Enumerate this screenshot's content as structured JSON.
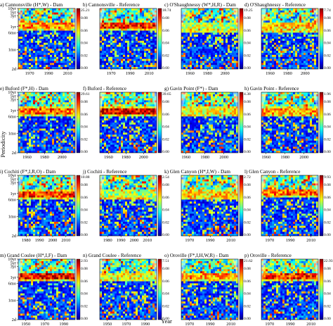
{
  "figure": {
    "ylabel": "Periodicity",
    "xlabel": "Year"
  },
  "chart_data": [
    {
      "type": "heatmap",
      "label": "a) Cannonsville (H*,W) - Dam",
      "x_ticks": [
        "1970",
        "1990",
        "2010"
      ],
      "y_ticks": [
        "10yr",
        "5yr",
        "3yr",
        "1yr",
        "6mo",
        "1mo",
        "2d"
      ],
      "colorbar_max": "25.21",
      "colorbar_ticks": [
        "0.08",
        "0.06",
        "0.04",
        "0.02",
        "0.00"
      ],
      "x_range": [
        1958,
        2018
      ]
    },
    {
      "type": "heatmap",
      "label": "b) Cannonsville - Reference",
      "x_ticks": [
        "1970",
        "1990",
        "2010"
      ],
      "y_ticks": [],
      "colorbar_max": "18.74",
      "colorbar_ticks": [
        "0.08",
        "0.06",
        "0.04",
        "0.02",
        "0.00"
      ],
      "x_range": [
        1958,
        2018
      ]
    },
    {
      "type": "heatmap",
      "label": "c) O'Shaughnessy (W*,H,R) - Dam",
      "x_ticks": [
        "1960",
        "1980",
        "2000"
      ],
      "y_ticks": [],
      "colorbar_max": "19.25",
      "colorbar_ticks": [
        "0.08",
        "0.06",
        "0.04",
        "0.02",
        "0.00"
      ],
      "x_range": [
        1950,
        2015
      ]
    },
    {
      "type": "heatmap",
      "label": "d) O'Shaughnessy - Reference",
      "x_ticks": [
        "1960",
        "1980",
        "2000"
      ],
      "y_ticks": [],
      "colorbar_max": "7.74",
      "colorbar_ticks": [
        "0.08",
        "0.06",
        "0.04",
        "0.02",
        "0.00"
      ],
      "x_range": [
        1950,
        2015
      ]
    },
    {
      "type": "heatmap",
      "label": "e) Buford (F*,H) - Dam",
      "x_ticks": [
        "1960",
        "1980",
        "2000"
      ],
      "y_ticks": [
        "10yr",
        "5yr",
        "3yr",
        "1yr",
        "6mo",
        "1mo",
        "2d"
      ],
      "colorbar_max": "29.61",
      "colorbar_ticks": [
        "0.08",
        "0.06",
        "0.04",
        "0.02",
        "0.00"
      ],
      "x_range": [
        1950,
        2015
      ]
    },
    {
      "type": "heatmap",
      "label": "f) Buford - Reference",
      "x_ticks": [
        "1960",
        "1980",
        "2000"
      ],
      "y_ticks": [],
      "colorbar_max": "39.65",
      "colorbar_ticks": [
        "0.08",
        "0.06",
        "0.04",
        "0.02",
        "0.00"
      ],
      "x_range": [
        1950,
        2015
      ]
    },
    {
      "type": "heatmap",
      "label": "g) Gavin Point (F*) - Dam",
      "x_ticks": [
        "1960",
        "1980",
        "2000"
      ],
      "y_ticks": [],
      "colorbar_max": "4.38",
      "colorbar_ticks": [
        "0.08",
        "0.06",
        "0.04",
        "0.02",
        "0.00"
      ],
      "x_range": [
        1955,
        2015
      ]
    },
    {
      "type": "heatmap",
      "label": "h) Gavin Point - Reference",
      "x_ticks": [
        "1960",
        "1980",
        "2000"
      ],
      "y_ticks": [],
      "colorbar_max": "1.96",
      "colorbar_ticks": [
        "0.08",
        "0.06",
        "0.04",
        "0.02",
        "0.00"
      ],
      "x_range": [
        1955,
        2015
      ]
    },
    {
      "type": "heatmap",
      "label": "i) Cochiti (F*,I,R,O) - Dam",
      "x_ticks": [
        "1980",
        "1990",
        "2000",
        "2010"
      ],
      "y_ticks": [
        "10yr",
        "5yr",
        "3yr",
        "1yr",
        "6mo",
        "1mo",
        "2d"
      ],
      "colorbar_max": "10.88",
      "colorbar_ticks": [
        "0.08",
        "0.06",
        "0.04",
        "0.02",
        "0.00"
      ],
      "x_range": [
        1974,
        2017
      ]
    },
    {
      "type": "heatmap",
      "label": "j) Cochiti - Reference",
      "x_ticks": [
        "1980",
        "1990",
        "2000",
        "2010"
      ],
      "y_ticks": [],
      "colorbar_max": "2.54",
      "colorbar_ticks": [
        "0.08",
        "0.06",
        "0.04",
        "0.02",
        "0.00"
      ],
      "x_range": [
        1974,
        2017
      ]
    },
    {
      "type": "heatmap",
      "label": "k) Glen Canyon (H*,I,W) - Dam",
      "x_ticks": [
        "1970",
        "1990",
        "2010"
      ],
      "y_ticks": [],
      "colorbar_max": "2.72",
      "colorbar_ticks": [
        "0.08",
        "0.06",
        "0.04",
        "0.02",
        "0.00"
      ],
      "x_range": [
        1962,
        2017
      ]
    },
    {
      "type": "heatmap",
      "label": "l) Glen Canyon - Reference",
      "x_ticks": [
        "1970",
        "1990",
        "2010"
      ],
      "y_ticks": [],
      "colorbar_max": "9.93",
      "colorbar_ticks": [
        "0.08",
        "0.06",
        "0.04",
        "0.02",
        "0.00"
      ],
      "x_range": [
        1962,
        2017
      ]
    },
    {
      "type": "heatmap",
      "label": "m) Grand Coulee (H*,I,F) - Dam",
      "x_ticks": [
        "1950",
        "1970",
        "1990"
      ],
      "y_ticks": [
        "10yr",
        "5yr",
        "3yr",
        "1yr",
        "6mo",
        "1mo",
        "2d"
      ],
      "colorbar_max": "2.93",
      "colorbar_ticks": [
        "0.08",
        "0.06",
        "0.04",
        "0.02",
        "0.00"
      ],
      "x_range": [
        1942,
        2002
      ]
    },
    {
      "type": "heatmap",
      "label": "n) Grand Coulee - Reference",
      "x_ticks": [
        "1950",
        "1970",
        "1990"
      ],
      "y_ticks": [],
      "colorbar_max": "7.51",
      "colorbar_ticks": [
        "0.08",
        "0.06",
        "0.04",
        "0.02",
        "0.00"
      ],
      "x_range": [
        1942,
        2002
      ]
    },
    {
      "type": "heatmap",
      "label": "o) Oroville (F*,I,H,W,R) - Dam",
      "x_ticks": [
        "1970",
        "1990",
        "2010"
      ],
      "y_ticks": [],
      "colorbar_max": "21.62",
      "colorbar_ticks": [
        "0.08",
        "0.06",
        "0.04",
        "0.02",
        "0.00"
      ],
      "x_range": [
        1962,
        2017
      ]
    },
    {
      "type": "heatmap",
      "label": "p) Oroville - Reference",
      "x_ticks": [
        "1970",
        "1990",
        "2010"
      ],
      "y_ticks": [],
      "colorbar_max": "22.93",
      "colorbar_ticks": [
        "0.08",
        "0.06",
        "0.04",
        "0.02",
        "0.00"
      ],
      "x_range": [
        1962,
        2017
      ]
    }
  ]
}
